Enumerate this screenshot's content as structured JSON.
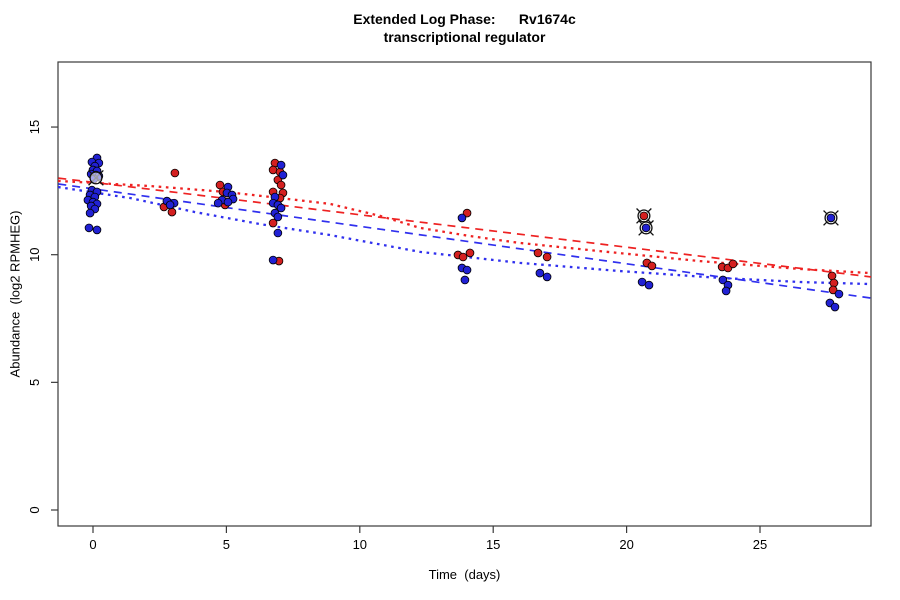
{
  "chart_data": {
    "type": "scatter",
    "title": "Extended Log Phase:      Rv1674c",
    "subtitle": "transcriptional regulator",
    "xlabel": "Time  (days)",
    "ylabel": "Abundance  (log2 RPMHEG)",
    "xlim": [
      -1.3,
      29.2
    ],
    "ylim": [
      -0.6,
      17.6
    ],
    "xticks": [
      0,
      5,
      10,
      15,
      20,
      25
    ],
    "yticks": [
      0,
      5,
      10,
      15
    ],
    "grid": false,
    "legend": null,
    "colors": {
      "red_points": "#d42020",
      "blue_points": "#2121d4",
      "red_line": "#ee2222",
      "blue_line": "#3030ee",
      "axis": "#3a3a3a",
      "flag_ring": "#111111"
    },
    "series": [
      {
        "name": "red-replicate",
        "color": "#d42020",
        "marker": "circle",
        "points": [
          [
            3.07,
            13.2
          ],
          [
            2.66,
            11.87
          ],
          [
            2.96,
            11.67
          ],
          [
            4.76,
            12.73
          ],
          [
            4.87,
            12.46
          ],
          [
            4.95,
            11.95
          ],
          [
            6.82,
            13.59
          ],
          [
            6.75,
            13.32
          ],
          [
            7.01,
            13.24
          ],
          [
            6.93,
            12.93
          ],
          [
            7.05,
            12.73
          ],
          [
            6.75,
            12.46
          ],
          [
            7.12,
            12.42
          ],
          [
            7.01,
            12.22
          ],
          [
            6.75,
            11.24
          ],
          [
            6.97,
            9.75
          ],
          [
            14.02,
            11.63
          ],
          [
            13.68,
            9.99
          ],
          [
            13.87,
            9.91
          ],
          [
            14.13,
            10.07
          ],
          [
            16.68,
            10.07
          ],
          [
            17.02,
            9.91
          ],
          [
            20.76,
            9.68
          ],
          [
            20.95,
            9.56
          ],
          [
            23.58,
            9.52
          ],
          [
            23.8,
            9.48
          ],
          [
            23.99,
            9.64
          ],
          [
            27.7,
            9.17
          ],
          [
            27.77,
            8.89
          ],
          [
            27.74,
            8.62
          ]
        ]
      },
      {
        "name": "blue-replicate",
        "color": "#2121d4",
        "marker": "circle",
        "points": [
          [
            0.15,
            13.79
          ],
          [
            -0.04,
            13.63
          ],
          [
            0.22,
            13.59
          ],
          [
            0.07,
            13.47
          ],
          [
            0.0,
            13.32
          ],
          [
            0.15,
            13.28
          ],
          [
            -0.07,
            13.16
          ],
          [
            0.11,
            13.12
          ],
          [
            0.22,
            13.08
          ],
          [
            0.04,
            12.97
          ],
          [
            -0.04,
            12.53
          ],
          [
            0.15,
            12.46
          ],
          [
            -0.11,
            12.34
          ],
          [
            0.07,
            12.26
          ],
          [
            -0.19,
            12.14
          ],
          [
            0.0,
            12.06
          ],
          [
            0.15,
            11.99
          ],
          [
            -0.07,
            11.91
          ],
          [
            0.07,
            11.79
          ],
          [
            -0.11,
            11.63
          ],
          [
            -0.15,
            11.05
          ],
          [
            0.15,
            10.97
          ],
          [
            2.77,
            12.1
          ],
          [
            3.04,
            12.02
          ],
          [
            2.89,
            11.95
          ],
          [
            5.06,
            12.65
          ],
          [
            5.02,
            12.42
          ],
          [
            5.21,
            12.34
          ],
          [
            5.25,
            12.18
          ],
          [
            4.84,
            12.14
          ],
          [
            5.06,
            12.06
          ],
          [
            4.69,
            12.02
          ],
          [
            7.05,
            13.51
          ],
          [
            7.12,
            13.12
          ],
          [
            6.82,
            12.26
          ],
          [
            6.75,
            12.02
          ],
          [
            6.93,
            11.95
          ],
          [
            7.05,
            11.83
          ],
          [
            6.82,
            11.63
          ],
          [
            6.93,
            11.48
          ],
          [
            6.93,
            10.85
          ],
          [
            6.75,
            9.79
          ],
          [
            13.83,
            11.44
          ],
          [
            13.83,
            9.48
          ],
          [
            14.02,
            9.4
          ],
          [
            13.94,
            9.01
          ],
          [
            16.75,
            9.28
          ],
          [
            17.02,
            9.13
          ],
          [
            20.58,
            8.93
          ],
          [
            20.84,
            8.81
          ],
          [
            23.61,
            9.01
          ],
          [
            23.8,
            8.81
          ],
          [
            23.73,
            8.58
          ],
          [
            27.96,
            8.46
          ],
          [
            27.62,
            8.11
          ],
          [
            27.81,
            7.95
          ]
        ]
      }
    ],
    "flagged_points": [
      {
        "day": 0.11,
        "value": 13.01,
        "color": null
      },
      {
        "day": 20.65,
        "value": 11.52,
        "color": "#d42020"
      },
      {
        "day": 20.73,
        "value": 11.05,
        "color": "#2121d4"
      },
      {
        "day": 27.66,
        "value": 11.44,
        "color": "#2121d4"
      }
    ],
    "trend_lines": [
      {
        "name": "red-dashed-fit",
        "color": "#ee2222",
        "style": "dashed",
        "points": [
          [
            -1.3,
            13.0
          ],
          [
            29.16,
            9.13
          ]
        ]
      },
      {
        "name": "red-dotted-fit",
        "color": "#ee2222",
        "style": "dotted",
        "points": [
          [
            -1.31,
            12.89
          ],
          [
            2.14,
            12.69
          ],
          [
            4.95,
            12.46
          ],
          [
            7.01,
            12.22
          ],
          [
            8.88,
            11.99
          ],
          [
            10.76,
            11.52
          ],
          [
            12.26,
            11.05
          ],
          [
            14.13,
            10.73
          ],
          [
            16.0,
            10.46
          ],
          [
            19.0,
            10.14
          ],
          [
            22.75,
            9.75
          ],
          [
            26.5,
            9.44
          ],
          [
            29.16,
            9.28
          ]
        ]
      },
      {
        "name": "blue-dashed-fit",
        "color": "#3030ee",
        "style": "dashed",
        "points": [
          [
            -1.3,
            12.77
          ],
          [
            29.16,
            8.3
          ]
        ]
      },
      {
        "name": "blue-dotted-fit",
        "color": "#3030ee",
        "style": "dotted",
        "points": [
          [
            -1.31,
            12.65
          ],
          [
            1.39,
            12.22
          ],
          [
            3.82,
            11.67
          ],
          [
            6.26,
            11.2
          ],
          [
            8.88,
            10.77
          ],
          [
            12.26,
            10.11
          ],
          [
            16.0,
            9.68
          ],
          [
            19.75,
            9.36
          ],
          [
            23.5,
            9.09
          ],
          [
            26.5,
            8.93
          ],
          [
            29.16,
            8.85
          ]
        ]
      }
    ]
  }
}
